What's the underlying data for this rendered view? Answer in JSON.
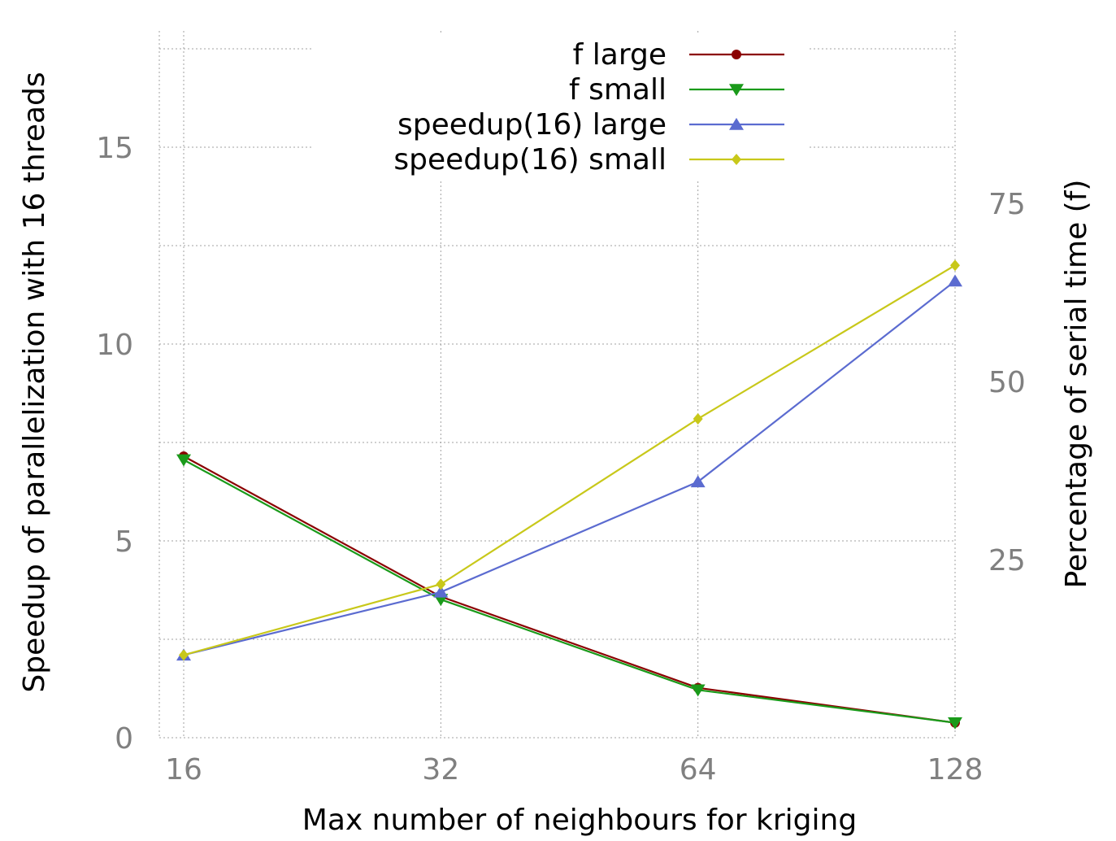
{
  "chart_data": {
    "type": "line",
    "title": "",
    "xlabel": "Max number of neighbours for kriging",
    "ylabel_left": "Speedup of parallelization with 16 threads",
    "ylabel_right": "Percentage of serial time (f)",
    "x_scale": "log2",
    "categories": [
      "16",
      "32",
      "64",
      "128"
    ],
    "x": [
      16,
      32,
      64,
      128
    ],
    "ylim_left": [
      0,
      18
    ],
    "ylim_right": [
      0,
      100
    ],
    "left_ticks": [
      0,
      5,
      10,
      15
    ],
    "right_ticks": [
      25,
      50,
      75
    ],
    "grid": true,
    "legend_position": "top-center",
    "series": [
      {
        "name": "f large",
        "axis": "right",
        "marker": "circle",
        "color": "#8b0000",
        "values": [
          39.5,
          19.8,
          7.0,
          2.1
        ]
      },
      {
        "name": "f small",
        "axis": "right",
        "marker": "triangle-down",
        "color": "#1a9a1a",
        "values": [
          39.0,
          19.4,
          6.7,
          2.1
        ]
      },
      {
        "name": "speedup(16) large",
        "axis": "left",
        "marker": "triangle-up",
        "color": "#5b6bd0",
        "values": [
          2.1,
          3.7,
          6.5,
          11.6
        ]
      },
      {
        "name": "speedup(16) small",
        "axis": "left",
        "marker": "diamond",
        "color": "#c8c81a",
        "values": [
          2.1,
          3.9,
          8.1,
          12.0
        ]
      }
    ]
  }
}
